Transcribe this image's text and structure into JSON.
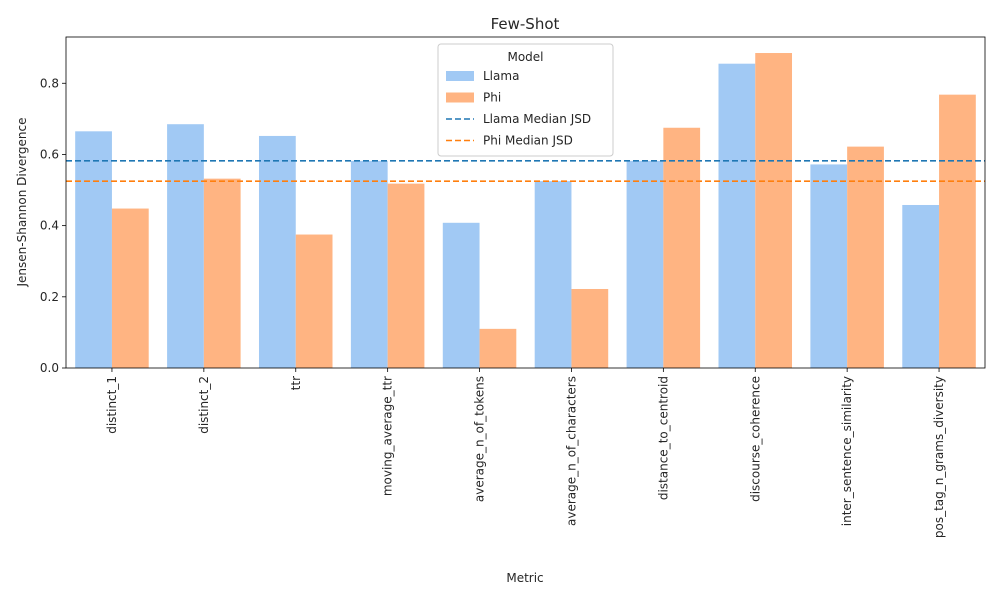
{
  "chart_data": {
    "type": "bar",
    "title": "Few-Shot",
    "xlabel": "Metric",
    "ylabel": "Jensen-Shannon Divergence",
    "ylim": [
      0,
      0.93
    ],
    "yticks": [
      0.0,
      0.2,
      0.4,
      0.6,
      0.8
    ],
    "ytick_labels": [
      "0.0",
      "0.2",
      "0.4",
      "0.6",
      "0.8"
    ],
    "categories": [
      "distinct_1",
      "distinct_2",
      "ttr",
      "moving_average_ttr",
      "average_n_of_tokens",
      "average_n_of_characters",
      "distance_to_centroid",
      "discourse_coherence",
      "inter_sentence_similarity",
      "pos_tag_n_grams_diversity"
    ],
    "series": [
      {
        "name": "Llama",
        "color": "#a1c9f4",
        "values": [
          0.665,
          0.685,
          0.652,
          0.582,
          0.408,
          0.525,
          0.582,
          0.855,
          0.572,
          0.458
        ]
      },
      {
        "name": "Phi",
        "color": "#ffb482",
        "values": [
          0.448,
          0.532,
          0.375,
          0.518,
          0.11,
          0.222,
          0.675,
          0.885,
          0.622,
          0.768
        ]
      }
    ],
    "reference_lines": [
      {
        "name": "Llama Median JSD",
        "value": 0.582,
        "color": "#1f77b4",
        "style": "dashed"
      },
      {
        "name": "Phi Median JSD",
        "value": 0.525,
        "color": "#ff7f0e",
        "style": "dashed"
      }
    ],
    "legend": {
      "title": "Model",
      "placement": "top-center"
    },
    "grid": false
  }
}
